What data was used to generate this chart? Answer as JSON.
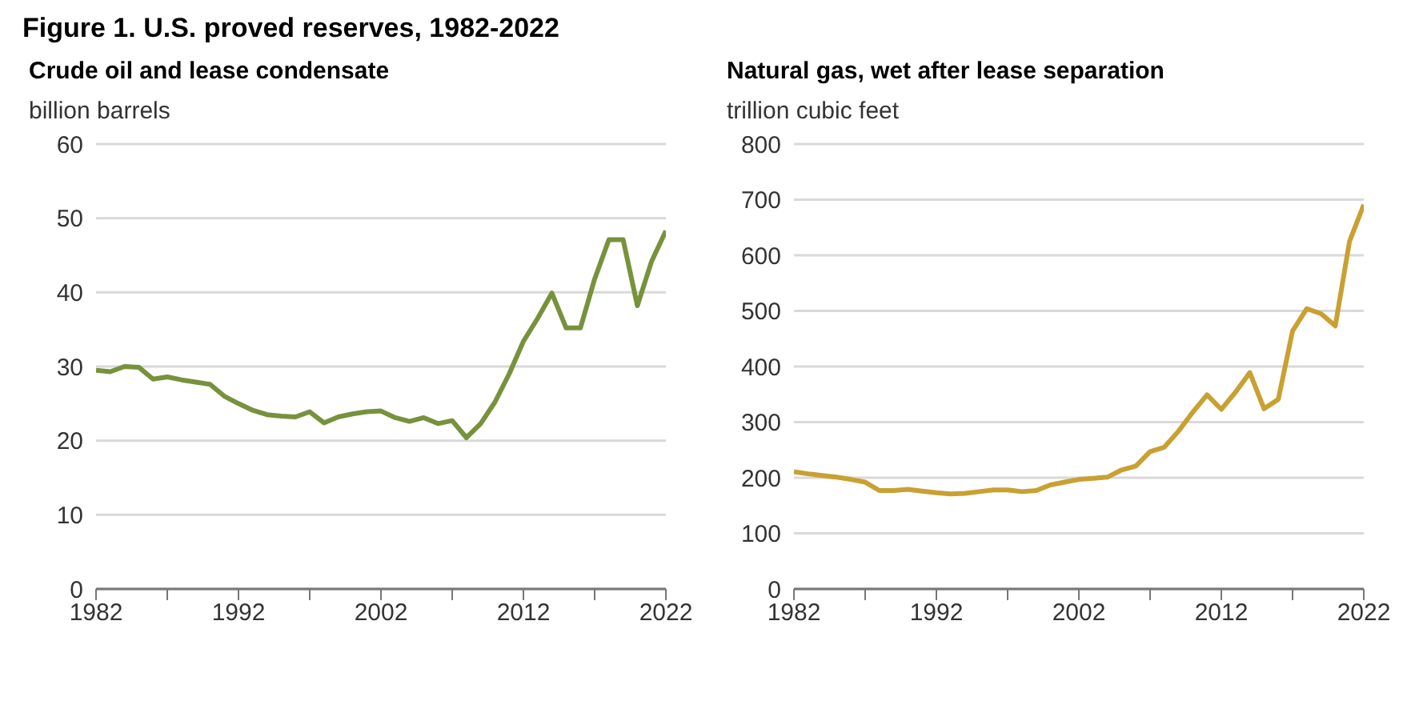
{
  "chart_data": [
    {
      "type": "line",
      "title": "Figure 1. U.S. proved reserves, 1982-2022",
      "subtitle": "Crude oil and lease condensate",
      "ylabel": "billion barrels",
      "x": [
        1982,
        1983,
        1984,
        1985,
        1986,
        1987,
        1988,
        1989,
        1990,
        1991,
        1992,
        1993,
        1994,
        1995,
        1996,
        1997,
        1998,
        1999,
        2000,
        2001,
        2002,
        2003,
        2004,
        2005,
        2006,
        2007,
        2008,
        2009,
        2010,
        2011,
        2012,
        2013,
        2014,
        2015,
        2016,
        2017,
        2018,
        2019,
        2020,
        2021,
        2022
      ],
      "series": [
        {
          "color": "#77923c",
          "values": [
            29.5,
            29.3,
            30.0,
            29.9,
            28.3,
            28.6,
            28.2,
            27.9,
            27.6,
            26.0,
            25.0,
            24.1,
            23.5,
            23.3,
            23.2,
            23.9,
            22.4,
            23.2,
            23.6,
            23.9,
            24.0,
            23.1,
            22.6,
            23.1,
            22.3,
            22.7,
            20.4,
            22.3,
            25.2,
            29.0,
            33.4,
            36.5,
            39.9,
            35.2,
            35.2,
            41.8,
            47.1,
            47.1,
            38.2,
            44.2,
            48.3
          ]
        }
      ],
      "xlim": [
        1982,
        2022
      ],
      "xticks": [
        1982,
        {
          "value": 1987,
          "label": null
        },
        1992,
        {
          "value": 1997,
          "label": null
        },
        2002,
        {
          "value": 2007,
          "label": null
        },
        2012,
        {
          "value": 2017,
          "label": null
        },
        2022
      ],
      "ylim": [
        0,
        60
      ],
      "yticks": [
        0,
        10,
        20,
        30,
        40,
        50,
        60
      ],
      "grid": "y",
      "marker": "none",
      "line_style": "solid"
    },
    {
      "type": "line",
      "subtitle": "Natural gas, wet after lease separation",
      "ylabel": "trillion cubic feet",
      "x": [
        1982,
        1983,
        1984,
        1985,
        1986,
        1987,
        1988,
        1989,
        1990,
        1991,
        1992,
        1993,
        1994,
        1995,
        1996,
        1997,
        1998,
        1999,
        2000,
        2001,
        2002,
        2003,
        2004,
        2005,
        2006,
        2007,
        2008,
        2009,
        2010,
        2011,
        2012,
        2013,
        2014,
        2015,
        2016,
        2017,
        2018,
        2019,
        2020,
        2021,
        2022
      ],
      "series": [
        {
          "color": "#c9a032",
          "values": [
            211,
            207,
            204,
            201,
            197,
            192,
            177,
            177,
            179,
            176,
            173,
            171,
            172,
            175,
            178,
            178,
            175,
            177,
            187,
            192,
            197,
            199,
            201,
            214,
            221,
            247,
            255,
            284,
            318,
            349,
            323,
            354,
            389,
            324,
            341,
            464,
            504,
            495,
            473,
            625,
            691
          ]
        }
      ],
      "xlim": [
        1982,
        2022
      ],
      "xticks": [
        1982,
        {
          "value": 1987,
          "label": null
        },
        1992,
        {
          "value": 1997,
          "label": null
        },
        2002,
        {
          "value": 2007,
          "label": null
        },
        2012,
        {
          "value": 2017,
          "label": null
        },
        2022
      ],
      "ylim": [
        0,
        800
      ],
      "yticks": [
        0,
        100,
        200,
        300,
        400,
        500,
        600,
        700,
        800
      ],
      "grid": "y",
      "marker": "none",
      "line_style": "solid"
    }
  ]
}
